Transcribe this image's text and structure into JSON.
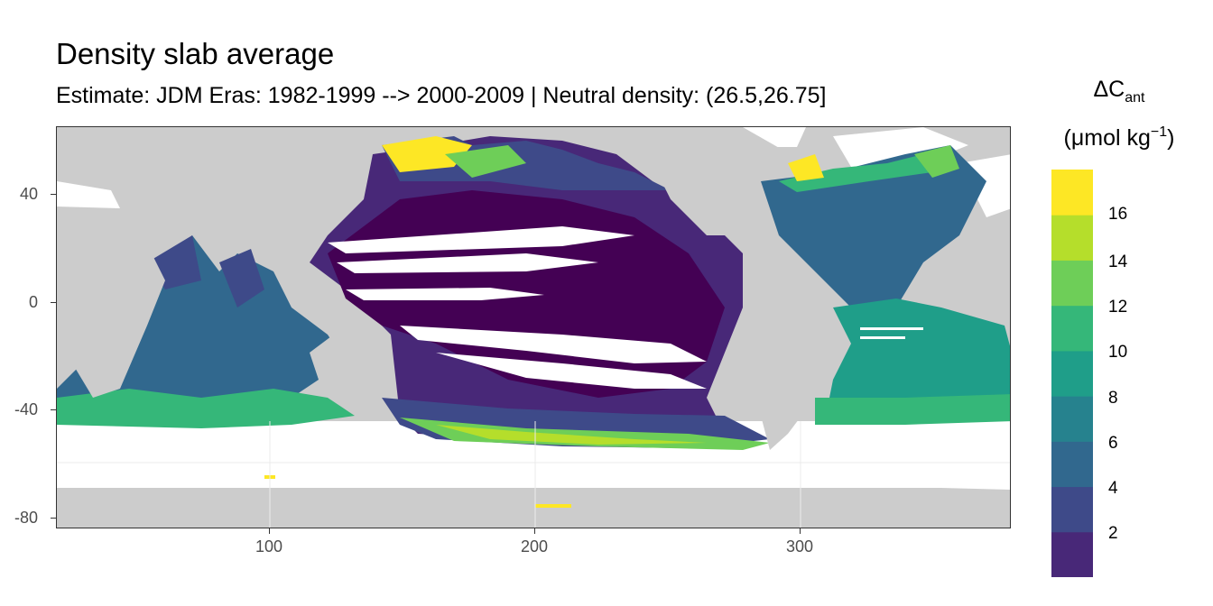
{
  "title": "Density slab average",
  "subtitle": "Estimate: JDM Eras: 1982-1999 --> 2000-2009 | Neutral density: (26.5,26.75]",
  "legend": {
    "title_main": "ΔC",
    "title_sub": "ant",
    "unit_pre": "(μmol kg",
    "unit_sup": "−1",
    "unit_post": ")",
    "breaks": [
      "2",
      "4",
      "6",
      "8",
      "10",
      "12",
      "14",
      "16"
    ],
    "colors": [
      "#440154",
      "#482878",
      "#3e4a89",
      "#31688e",
      "#26828e",
      "#1f9e89",
      "#35b779",
      "#6ece58",
      "#b5de2b",
      "#fde725"
    ]
  },
  "map": {
    "x_ticks": [
      "100",
      "200",
      "300"
    ],
    "y_ticks": [
      "40",
      "0",
      "-40",
      "-80"
    ],
    "land_color": "#cccccc",
    "no_data_color": "#ffffff"
  }
}
